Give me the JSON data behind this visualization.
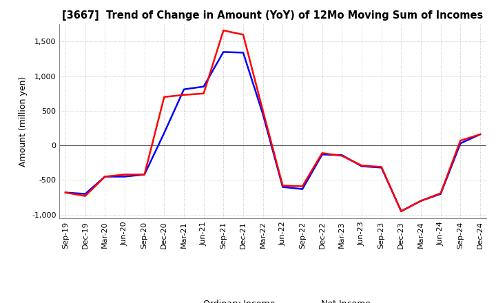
{
  "title": "[3667]  Trend of Change in Amount (YoY) of 12Mo Moving Sum of Incomes",
  "ylabel": "Amount (million yen)",
  "ylim": [
    -1050,
    1750
  ],
  "yticks": [
    -1000,
    -500,
    0,
    500,
    1000,
    1500
  ],
  "background_color": "#ffffff",
  "grid_color": "#aaaaaa",
  "ordinary_income_color": "#0000ff",
  "net_income_color": "#ff0000",
  "x_labels": [
    "Sep-19",
    "Dec-19",
    "Mar-20",
    "Jun-20",
    "Sep-20",
    "Dec-20",
    "Mar-21",
    "Jun-21",
    "Sep-21",
    "Dec-21",
    "Mar-22",
    "Jun-22",
    "Sep-22",
    "Dec-22",
    "Mar-23",
    "Jun-23",
    "Sep-23",
    "Dec-23",
    "Mar-24",
    "Jun-24",
    "Sep-24",
    "Dec-24"
  ],
  "ordinary_income": [
    -680,
    -700,
    -450,
    -450,
    -420,
    180,
    810,
    850,
    1350,
    1340,
    450,
    -600,
    -630,
    -130,
    -140,
    -300,
    -320,
    -950,
    -800,
    -700,
    30,
    160
  ],
  "net_income": [
    -680,
    -730,
    -450,
    -420,
    -420,
    700,
    730,
    750,
    1660,
    1600,
    500,
    -580,
    -590,
    -110,
    -150,
    -290,
    -310,
    -950,
    -800,
    -690,
    70,
    160
  ]
}
